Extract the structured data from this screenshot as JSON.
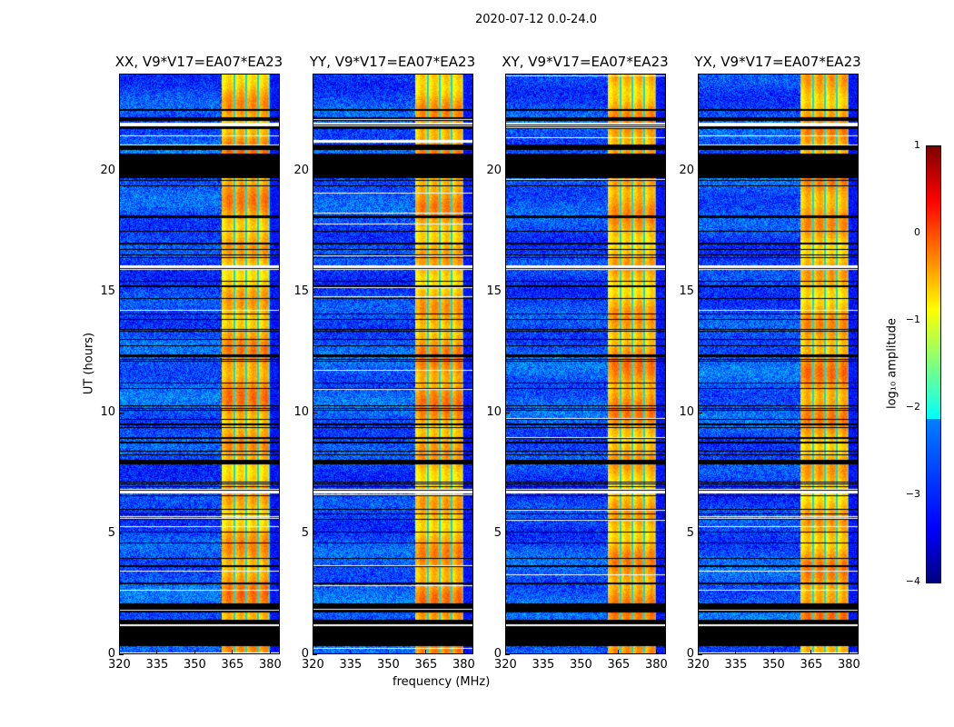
{
  "chart_data": {
    "type": "heatmap",
    "title": "2020-07-12 0.0-24.0",
    "xlabel": "frequency (MHz)",
    "ylabel": "UT (hours)",
    "xlim": [
      320,
      384
    ],
    "ylim": [
      0,
      24
    ],
    "xticks": [
      "320",
      "335",
      "350",
      "365",
      "380"
    ],
    "xtick_values": [
      320,
      335,
      350,
      365,
      380
    ],
    "yticks": [
      "0",
      "5",
      "10",
      "15",
      "20"
    ],
    "ytick_values": [
      0,
      5,
      10,
      15,
      20
    ],
    "panels": [
      {
        "title": "XX, V9*V17=EA07*EA23"
      },
      {
        "title": "YY, V9*V17=EA07*EA23"
      },
      {
        "title": "XY, V9*V17=EA07*EA23"
      },
      {
        "title": "YX, V9*V17=EA07*EA23"
      }
    ],
    "colorbar": {
      "label": "log₁₀ amplitude",
      "range": [
        -4,
        1
      ],
      "ticks": [
        "1",
        "0",
        "−1",
        "−2",
        "−3",
        "−4"
      ],
      "tick_values": [
        1,
        0,
        -1,
        -2,
        -3,
        -4
      ],
      "colormap": "jet"
    },
    "background_level": -3,
    "bright_band_mhz": [
      360.5,
      380
    ],
    "bright_level": -0.5,
    "flagged_hours": [
      [
        0.37,
        1.2
      ],
      [
        1.35,
        1.46
      ],
      [
        1.76,
        2.13
      ],
      [
        19.7,
        20.7
      ],
      [
        20.85,
        21.05
      ]
    ],
    "no_data_hours": [
      [
        1.2,
        1.35
      ],
      [
        6.65,
        6.85
      ],
      [
        15.9,
        16.1
      ],
      [
        21.8,
        22.0
      ]
    ]
  }
}
